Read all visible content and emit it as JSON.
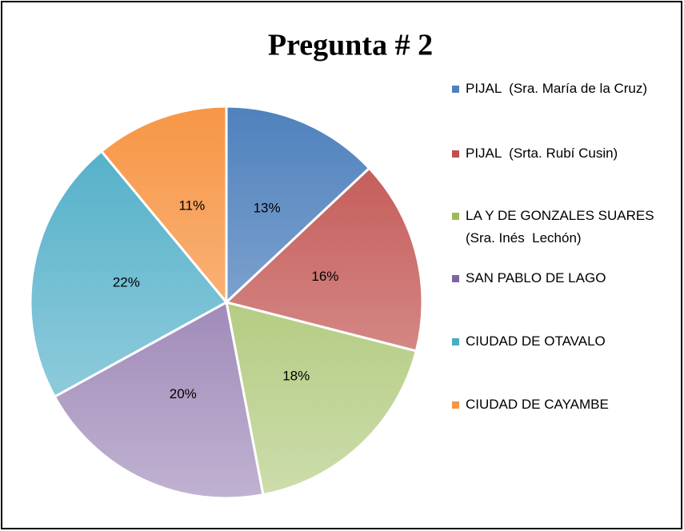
{
  "chart_data": {
    "type": "pie",
    "title": "Pregunta # 2",
    "categories": [
      "PIJAL  (Sra. María de la Cruz)",
      "PIJAL  (Srta. Rubí Cusin)",
      "LA Y DE GONZALES SUARES (Sra. Inés  Lechón)",
      "SAN PABLO DE LAGO",
      "CIUDAD DE OTAVALO",
      "CIUDAD DE CAYAMBE"
    ],
    "values": [
      13,
      16,
      18,
      20,
      22,
      11
    ],
    "value_labels": [
      "13%",
      "16%",
      "18%",
      "20%",
      "22%",
      "11%"
    ],
    "colors": [
      "#4f81bd",
      "#c0504d",
      "#9bbb59",
      "#8064a2",
      "#4bacc6",
      "#f79646"
    ],
    "legend": "right"
  }
}
